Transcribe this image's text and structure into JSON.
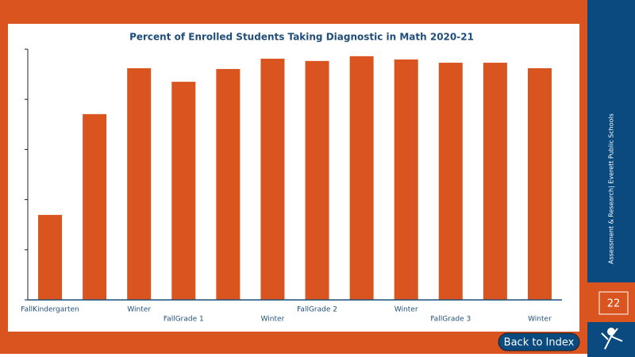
{
  "chart_data": {
    "type": "bar",
    "title": "Percent of Enrolled Students Taking Diagnostic in Math 2020-21",
    "categories": [
      "FallKindergarten",
      null,
      "Winter",
      "FallGrade 1",
      null,
      "Winter",
      "FallGrade 2",
      null,
      "Winter",
      "FallGrade 3",
      null,
      "Winter"
    ],
    "values": [
      33.9,
      74.1,
      92.4,
      87.0,
      92.1,
      96.2,
      95.3,
      97.2,
      95.9,
      94.6,
      94.6,
      92.4
    ],
    "color": "#d9541e",
    "ylim": [
      0,
      100
    ],
    "yticks": [
      0,
      20,
      40,
      60,
      80,
      100
    ],
    "grid": false
  },
  "slide": {
    "sidebar_text": "Assessment & Research| Everett Public Schools",
    "page_number": "22",
    "button": "Back to Index"
  }
}
